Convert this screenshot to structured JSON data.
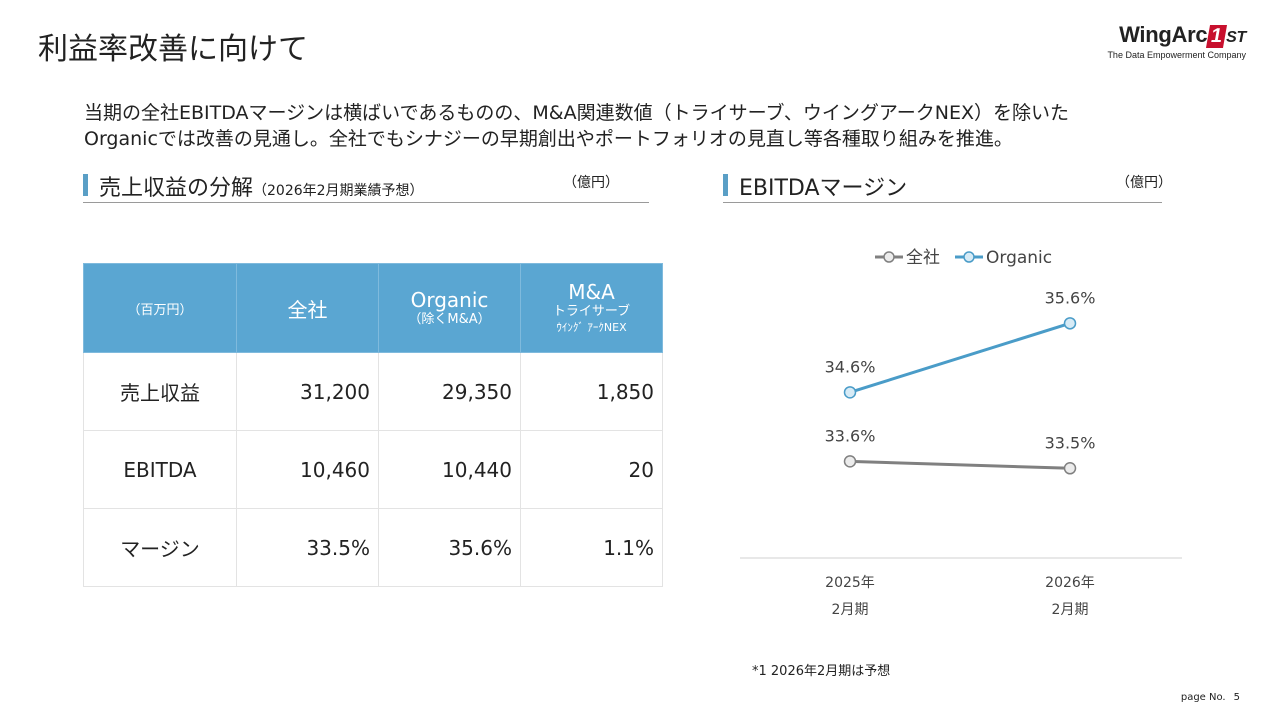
{
  "title": "利益率改善に向けて",
  "logo": {
    "brand_a": "WingArc",
    "brand_badge": "1",
    "brand_b": "ST",
    "tagline": "The Data Empowerment Company"
  },
  "lead": {
    "line1": "当期の全社EBITDAマージンは横ばいであるものの、M&A関連数値（トライサーブ、ウイングアークNEX）を除いた",
    "line2": "Organicでは改善の見通し。全社でもシナジーの早期創出やポートフォリオの見直し等各種取り組みを推進。"
  },
  "left_section": {
    "title": "売上収益の分解",
    "subtitle": "（2026年2月期業績予想）",
    "unit": "（億円）"
  },
  "right_section": {
    "title": "EBITDAマージン",
    "unit": "（億円）"
  },
  "table": {
    "headers": {
      "unit": "（百万円）",
      "total": "全社",
      "organic": "Organic",
      "organic_sub": "（除くM&A）",
      "ma": "M&A",
      "ma_sub1": "トライサーブ",
      "ma_sub2": "ｳｲﾝｸﾞ ｱｰｸNEX"
    },
    "rows": [
      {
        "label": "売上収益",
        "total": "31,200",
        "organic": "29,350",
        "ma": "1,850"
      },
      {
        "label": "EBITDA",
        "total": "10,460",
        "organic": "10,440",
        "ma": "20"
      },
      {
        "label": "マージン",
        "total": "33.5%",
        "organic": "35.6%",
        "ma": "1.1%"
      }
    ]
  },
  "chart_data": {
    "type": "line",
    "categories": [
      [
        "2025年",
        "2月期"
      ],
      [
        "2026年",
        "2月期"
      ]
    ],
    "series": [
      {
        "name": "全社",
        "values": [
          33.6,
          33.5
        ],
        "labels": [
          "33.6%",
          "33.5%"
        ],
        "color": "#808080",
        "marker_fill": "#ececec"
      },
      {
        "name": "Organic",
        "values": [
          34.6,
          35.6
        ],
        "labels": [
          "34.6%",
          "35.6%"
        ],
        "color": "#4a9cc8",
        "marker_fill": "#d7ebf6"
      }
    ],
    "ylim": [
      32.2,
      36.3
    ]
  },
  "footnote": "*1 2026年2月期は予想",
  "page_no": {
    "label": "page No.",
    "value": "5"
  }
}
